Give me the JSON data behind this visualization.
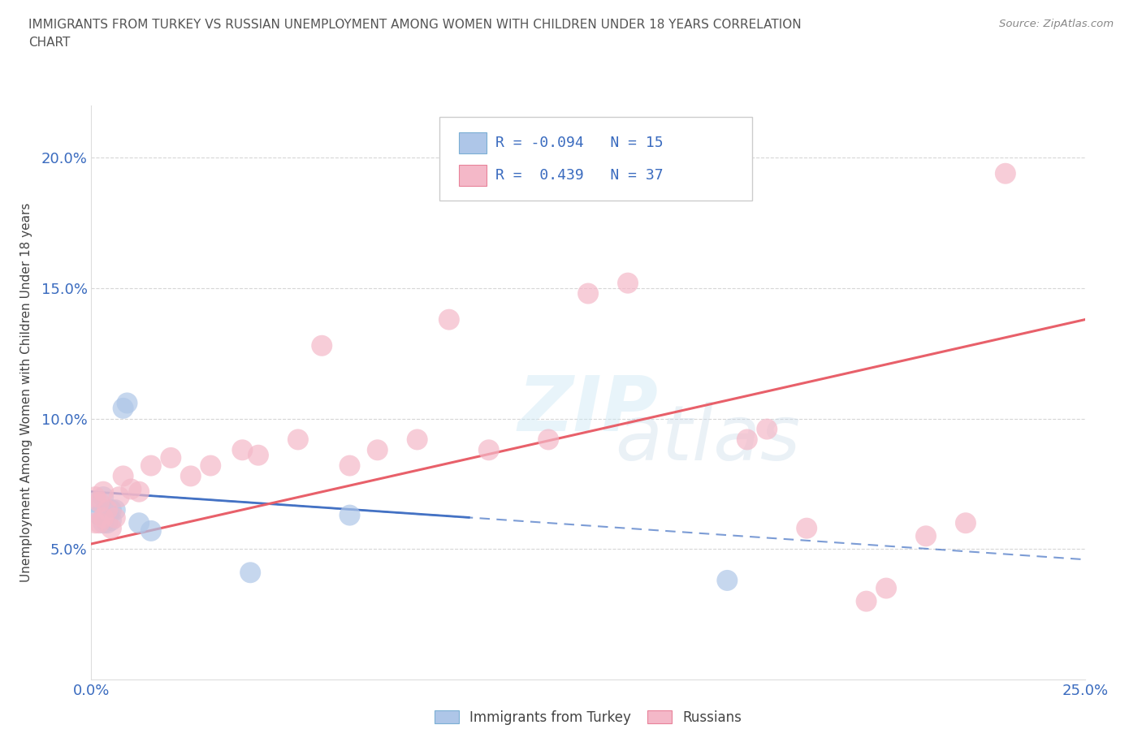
{
  "title_line1": "IMMIGRANTS FROM TURKEY VS RUSSIAN UNEMPLOYMENT AMONG WOMEN WITH CHILDREN UNDER 18 YEARS CORRELATION",
  "title_line2": "CHART",
  "source": "Source: ZipAtlas.com",
  "ylabel": "Unemployment Among Women with Children Under 18 years",
  "x_min": 0.0,
  "x_max": 0.25,
  "y_min": 0.0,
  "y_max": 0.22,
  "turkey_color": "#aec6e8",
  "turkey_edge": "none",
  "russia_color": "#f4b8c8",
  "russia_edge": "none",
  "turkey_line_color": "#4472c4",
  "russia_line_color": "#e8606a",
  "turkey_R": -0.094,
  "turkey_N": 15,
  "russia_R": 0.439,
  "russia_N": 37,
  "legend_label_turkey": "Immigrants from Turkey",
  "legend_label_russia": "Russians",
  "watermark": "ZIPatlas",
  "turkey_x": [
    0.001,
    0.002,
    0.003,
    0.003,
    0.004,
    0.005,
    0.005,
    0.006,
    0.008,
    0.009,
    0.012,
    0.015,
    0.04,
    0.065,
    0.16
  ],
  "turkey_y": [
    0.068,
    0.063,
    0.06,
    0.07,
    0.06,
    0.061,
    0.065,
    0.065,
    0.104,
    0.106,
    0.06,
    0.057,
    0.041,
    0.063,
    0.038
  ],
  "russia_x": [
    0.001,
    0.001,
    0.002,
    0.002,
    0.003,
    0.003,
    0.004,
    0.005,
    0.006,
    0.007,
    0.008,
    0.01,
    0.012,
    0.015,
    0.02,
    0.025,
    0.03,
    0.038,
    0.042,
    0.052,
    0.058,
    0.065,
    0.072,
    0.082,
    0.09,
    0.1,
    0.115,
    0.125,
    0.135,
    0.165,
    0.17,
    0.18,
    0.195,
    0.2,
    0.21,
    0.22,
    0.23
  ],
  "russia_y": [
    0.06,
    0.07,
    0.06,
    0.068,
    0.062,
    0.072,
    0.065,
    0.058,
    0.062,
    0.07,
    0.078,
    0.073,
    0.072,
    0.082,
    0.085,
    0.078,
    0.082,
    0.088,
    0.086,
    0.092,
    0.128,
    0.082,
    0.088,
    0.092,
    0.138,
    0.088,
    0.092,
    0.148,
    0.152,
    0.092,
    0.096,
    0.058,
    0.03,
    0.035,
    0.055,
    0.06,
    0.194
  ],
  "turkey_line_x": [
    0.0,
    0.25
  ],
  "turkey_line_y_start": 0.072,
  "turkey_line_y_end": 0.046,
  "russia_line_x": [
    0.0,
    0.25
  ],
  "russia_line_y_start": 0.052,
  "russia_line_y_end": 0.138
}
